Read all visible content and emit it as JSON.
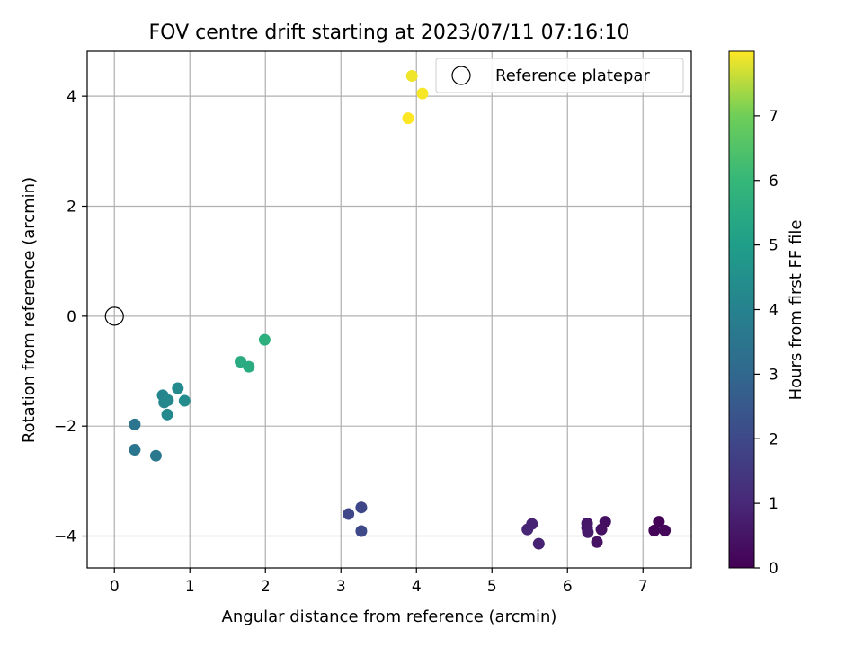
{
  "chart_data": {
    "type": "scatter",
    "title": "FOV centre drift starting at 2023/07/11 07:16:10",
    "xlabel": "Angular distance from reference (arcmin)",
    "ylabel": "Rotation from reference (arcmin)",
    "xlim": [
      -0.36,
      7.64
    ],
    "ylim": [
      -4.58,
      4.82
    ],
    "xticks": [
      0,
      1,
      2,
      3,
      4,
      5,
      6,
      7
    ],
    "yticks": [
      -4,
      -2,
      0,
      2,
      4
    ],
    "grid": true,
    "legend": {
      "position": "top-right",
      "entries": [
        "Reference platepar"
      ]
    },
    "reference_point": {
      "x": 0,
      "y": 0,
      "label": "Reference platepar"
    },
    "colorbar": {
      "label": "Hours from first FF file",
      "colormap": "viridis",
      "range": [
        0,
        8.0
      ],
      "ticks": [
        0,
        1,
        2,
        3,
        4,
        5,
        6,
        7
      ]
    },
    "points": [
      {
        "x": 7.21,
        "y": -3.74,
        "c": 0.05
      },
      {
        "x": 7.15,
        "y": -3.9,
        "c": 0.1
      },
      {
        "x": 7.29,
        "y": -3.9,
        "c": 0.15
      },
      {
        "x": 6.5,
        "y": -3.74,
        "c": 0.35
      },
      {
        "x": 6.45,
        "y": -3.88,
        "c": 0.4
      },
      {
        "x": 6.39,
        "y": -4.11,
        "c": 0.45
      },
      {
        "x": 6.26,
        "y": -3.77,
        "c": 0.55
      },
      {
        "x": 6.26,
        "y": -3.85,
        "c": 0.6
      },
      {
        "x": 6.27,
        "y": -3.93,
        "c": 0.65
      },
      {
        "x": 5.62,
        "y": -4.14,
        "c": 0.85
      },
      {
        "x": 5.53,
        "y": -3.78,
        "c": 0.9
      },
      {
        "x": 5.47,
        "y": -3.88,
        "c": 0.95
      },
      {
        "x": 3.27,
        "y": -3.48,
        "c": 1.9
      },
      {
        "x": 3.1,
        "y": -3.6,
        "c": 1.95
      },
      {
        "x": 3.27,
        "y": -3.91,
        "c": 2.0
      },
      {
        "x": 0.27,
        "y": -1.97,
        "c": 3.5
      },
      {
        "x": 0.27,
        "y": -2.43,
        "c": 3.55
      },
      {
        "x": 0.55,
        "y": -2.54,
        "c": 3.6
      },
      {
        "x": 0.64,
        "y": -1.44,
        "c": 4.1
      },
      {
        "x": 0.66,
        "y": -1.57,
        "c": 4.15
      },
      {
        "x": 0.71,
        "y": -1.53,
        "c": 4.2
      },
      {
        "x": 0.7,
        "y": -1.79,
        "c": 4.25
      },
      {
        "x": 0.84,
        "y": -1.31,
        "c": 4.3
      },
      {
        "x": 0.93,
        "y": -1.54,
        "c": 4.35
      },
      {
        "x": 1.67,
        "y": -0.83,
        "c": 5.5
      },
      {
        "x": 1.78,
        "y": -0.92,
        "c": 5.55
      },
      {
        "x": 1.99,
        "y": -0.43,
        "c": 5.7
      },
      {
        "x": 3.94,
        "y": 4.37,
        "c": 7.9
      },
      {
        "x": 4.08,
        "y": 4.05,
        "c": 7.95
      },
      {
        "x": 3.89,
        "y": 3.6,
        "c": 8.0
      }
    ]
  }
}
